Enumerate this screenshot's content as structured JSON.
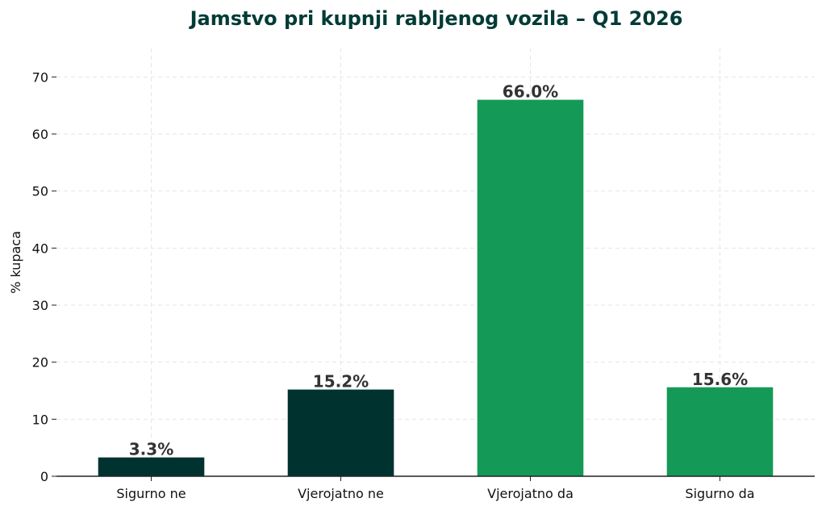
{
  "chart_data": {
    "type": "bar",
    "title": "Jamstvo pri kupnji rabljenog vozila – Q1 2026",
    "xlabel": "",
    "ylabel": "% kupaca",
    "categories": [
      "Sigurno ne",
      "Vjerojatno ne",
      "Vjerojatno da",
      "Sigurno da"
    ],
    "values": [
      3.3,
      15.2,
      66.0,
      15.6
    ],
    "data_labels": [
      "3.3%",
      "15.2%",
      "66.0%",
      "15.6%"
    ],
    "bar_colors": [
      "#003330",
      "#003330",
      "#159957",
      "#159957"
    ],
    "ylim": [
      0,
      75
    ],
    "yticks": [
      0,
      10,
      20,
      30,
      40,
      50,
      60,
      70
    ],
    "grid": true,
    "title_color": "#003b36"
  }
}
